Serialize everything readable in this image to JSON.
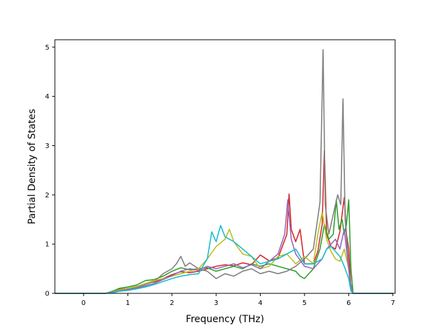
{
  "chart_data": {
    "type": "line",
    "xlabel": "Frequency (THz)",
    "ylabel": "Partial Density of States",
    "xlim": [
      -0.65,
      7.05
    ],
    "ylim": [
      0,
      5.15
    ],
    "xticks": [
      0,
      1,
      2,
      3,
      4,
      5,
      6,
      7
    ],
    "yticks": [
      0,
      1,
      2,
      3,
      4,
      5
    ],
    "grid": false,
    "legend": "none",
    "series": [
      {
        "color": "#d62728",
        "points": [
          [
            -0.65,
            0
          ],
          [
            0.5,
            0
          ],
          [
            0.7,
            0.05
          ],
          [
            0.8,
            0.08
          ],
          [
            1.0,
            0.1
          ],
          [
            1.2,
            0.14
          ],
          [
            1.4,
            0.2
          ],
          [
            1.6,
            0.23
          ],
          [
            1.8,
            0.3
          ],
          [
            2.0,
            0.38
          ],
          [
            2.2,
            0.44
          ],
          [
            2.4,
            0.42
          ],
          [
            2.6,
            0.45
          ],
          [
            2.8,
            0.5
          ],
          [
            3.0,
            0.55
          ],
          [
            3.2,
            0.58
          ],
          [
            3.4,
            0.56
          ],
          [
            3.6,
            0.62
          ],
          [
            3.8,
            0.58
          ],
          [
            4.0,
            0.78
          ],
          [
            4.2,
            0.66
          ],
          [
            4.4,
            0.72
          ],
          [
            4.6,
            1.2
          ],
          [
            4.65,
            2.02
          ],
          [
            4.7,
            1.3
          ],
          [
            4.8,
            1.05
          ],
          [
            4.9,
            1.3
          ],
          [
            5.0,
            0.6
          ],
          [
            5.2,
            0.6
          ],
          [
            5.3,
            0.85
          ],
          [
            5.4,
            1.4
          ],
          [
            5.45,
            2.9
          ],
          [
            5.5,
            1.2
          ],
          [
            5.6,
            0.95
          ],
          [
            5.7,
            0.9
          ],
          [
            5.8,
            1.25
          ],
          [
            5.9,
            1.95
          ],
          [
            5.95,
            1.2
          ],
          [
            6.0,
            0.9
          ],
          [
            6.05,
            0.1
          ],
          [
            6.1,
            0
          ],
          [
            7.0,
            0
          ]
        ]
      },
      {
        "color": "#2ca02c",
        "points": [
          [
            -0.65,
            0
          ],
          [
            0.5,
            0
          ],
          [
            0.7,
            0.06
          ],
          [
            0.8,
            0.1
          ],
          [
            1.0,
            0.13
          ],
          [
            1.2,
            0.17
          ],
          [
            1.4,
            0.26
          ],
          [
            1.6,
            0.28
          ],
          [
            1.8,
            0.35
          ],
          [
            2.0,
            0.45
          ],
          [
            2.2,
            0.52
          ],
          [
            2.4,
            0.48
          ],
          [
            2.6,
            0.5
          ],
          [
            2.8,
            0.52
          ],
          [
            3.0,
            0.45
          ],
          [
            3.2,
            0.5
          ],
          [
            3.4,
            0.55
          ],
          [
            3.6,
            0.5
          ],
          [
            3.8,
            0.6
          ],
          [
            4.0,
            0.55
          ],
          [
            4.2,
            0.6
          ],
          [
            4.4,
            0.55
          ],
          [
            4.6,
            0.5
          ],
          [
            4.8,
            0.45
          ],
          [
            4.9,
            0.35
          ],
          [
            5.0,
            0.3
          ],
          [
            5.2,
            0.5
          ],
          [
            5.35,
            0.9
          ],
          [
            5.45,
            1.4
          ],
          [
            5.55,
            1.1
          ],
          [
            5.65,
            1.2
          ],
          [
            5.72,
            1.9
          ],
          [
            5.78,
            1.3
          ],
          [
            5.85,
            1.5
          ],
          [
            5.9,
            1.2
          ],
          [
            5.95,
            1.4
          ],
          [
            6.0,
            1.9
          ],
          [
            6.05,
            0.5
          ],
          [
            6.1,
            0
          ],
          [
            7.0,
            0
          ]
        ]
      },
      {
        "color": "#7f7f7f",
        "points": [
          [
            -0.65,
            0
          ],
          [
            0.5,
            0
          ],
          [
            0.7,
            0.03
          ],
          [
            0.8,
            0.06
          ],
          [
            1.0,
            0.09
          ],
          [
            1.2,
            0.12
          ],
          [
            1.4,
            0.18
          ],
          [
            1.6,
            0.24
          ],
          [
            1.8,
            0.4
          ],
          [
            2.0,
            0.5
          ],
          [
            2.1,
            0.6
          ],
          [
            2.2,
            0.75
          ],
          [
            2.3,
            0.55
          ],
          [
            2.4,
            0.62
          ],
          [
            2.6,
            0.5
          ],
          [
            2.8,
            0.45
          ],
          [
            3.0,
            0.3
          ],
          [
            3.2,
            0.4
          ],
          [
            3.4,
            0.35
          ],
          [
            3.6,
            0.45
          ],
          [
            3.8,
            0.5
          ],
          [
            4.0,
            0.4
          ],
          [
            4.2,
            0.45
          ],
          [
            4.4,
            0.4
          ],
          [
            4.6,
            0.45
          ],
          [
            4.8,
            0.55
          ],
          [
            5.0,
            0.7
          ],
          [
            5.2,
            0.9
          ],
          [
            5.35,
            1.85
          ],
          [
            5.42,
            4.95
          ],
          [
            5.47,
            1.8
          ],
          [
            5.55,
            1.2
          ],
          [
            5.65,
            1.6
          ],
          [
            5.75,
            2.0
          ],
          [
            5.82,
            1.8
          ],
          [
            5.87,
            3.95
          ],
          [
            5.92,
            1.5
          ],
          [
            5.97,
            0.9
          ],
          [
            6.02,
            0.3
          ],
          [
            6.1,
            0
          ],
          [
            7.0,
            0
          ]
        ]
      },
      {
        "color": "#bcbd22",
        "points": [
          [
            -0.65,
            0
          ],
          [
            0.5,
            0
          ],
          [
            0.7,
            0.04
          ],
          [
            0.8,
            0.07
          ],
          [
            1.0,
            0.1
          ],
          [
            1.2,
            0.14
          ],
          [
            1.4,
            0.2
          ],
          [
            1.6,
            0.26
          ],
          [
            1.8,
            0.3
          ],
          [
            2.0,
            0.35
          ],
          [
            2.2,
            0.4
          ],
          [
            2.4,
            0.45
          ],
          [
            2.6,
            0.5
          ],
          [
            2.8,
            0.7
          ],
          [
            3.0,
            0.95
          ],
          [
            3.2,
            1.1
          ],
          [
            3.3,
            1.3
          ],
          [
            3.4,
            1.05
          ],
          [
            3.6,
            0.8
          ],
          [
            3.8,
            0.75
          ],
          [
            4.0,
            0.5
          ],
          [
            4.2,
            0.55
          ],
          [
            4.4,
            0.75
          ],
          [
            4.6,
            0.8
          ],
          [
            4.8,
            0.6
          ],
          [
            5.0,
            0.75
          ],
          [
            5.2,
            0.6
          ],
          [
            5.3,
            1.2
          ],
          [
            5.4,
            1.65
          ],
          [
            5.5,
            1.1
          ],
          [
            5.6,
            0.85
          ],
          [
            5.7,
            0.7
          ],
          [
            5.8,
            0.65
          ],
          [
            5.9,
            0.9
          ],
          [
            6.0,
            0.5
          ],
          [
            6.05,
            0.1
          ],
          [
            6.1,
            0
          ],
          [
            7.0,
            0
          ]
        ]
      },
      {
        "color": "#9467bd",
        "points": [
          [
            -0.65,
            0
          ],
          [
            0.5,
            0
          ],
          [
            0.7,
            0.03
          ],
          [
            0.8,
            0.05
          ],
          [
            1.0,
            0.08
          ],
          [
            1.2,
            0.11
          ],
          [
            1.4,
            0.15
          ],
          [
            1.6,
            0.2
          ],
          [
            1.8,
            0.28
          ],
          [
            2.0,
            0.36
          ],
          [
            2.2,
            0.45
          ],
          [
            2.4,
            0.5
          ],
          [
            2.6,
            0.47
          ],
          [
            2.8,
            0.55
          ],
          [
            3.0,
            0.5
          ],
          [
            3.2,
            0.55
          ],
          [
            3.4,
            0.6
          ],
          [
            3.6,
            0.52
          ],
          [
            3.8,
            0.58
          ],
          [
            4.0,
            0.5
          ],
          [
            4.2,
            0.65
          ],
          [
            4.4,
            0.8
          ],
          [
            4.55,
            1.2
          ],
          [
            4.62,
            1.9
          ],
          [
            4.7,
            1.1
          ],
          [
            4.8,
            0.8
          ],
          [
            5.0,
            0.55
          ],
          [
            5.2,
            0.5
          ],
          [
            5.4,
            0.7
          ],
          [
            5.5,
            0.9
          ],
          [
            5.6,
            1.0
          ],
          [
            5.7,
            1.1
          ],
          [
            5.8,
            0.9
          ],
          [
            5.9,
            1.3
          ],
          [
            5.95,
            0.9
          ],
          [
            6.0,
            0.5
          ],
          [
            6.05,
            0.1
          ],
          [
            6.1,
            0
          ],
          [
            7.0,
            0
          ]
        ]
      },
      {
        "color": "#17becf",
        "points": [
          [
            -0.65,
            0
          ],
          [
            0.5,
            0
          ],
          [
            0.7,
            0.02
          ],
          [
            0.8,
            0.04
          ],
          [
            1.0,
            0.06
          ],
          [
            1.2,
            0.09
          ],
          [
            1.4,
            0.13
          ],
          [
            1.6,
            0.18
          ],
          [
            1.8,
            0.24
          ],
          [
            2.0,
            0.3
          ],
          [
            2.2,
            0.35
          ],
          [
            2.4,
            0.38
          ],
          [
            2.6,
            0.4
          ],
          [
            2.8,
            0.7
          ],
          [
            2.9,
            1.25
          ],
          [
            3.0,
            1.05
          ],
          [
            3.1,
            1.38
          ],
          [
            3.2,
            1.15
          ],
          [
            3.4,
            1.05
          ],
          [
            3.6,
            0.9
          ],
          [
            3.8,
            0.75
          ],
          [
            4.0,
            0.6
          ],
          [
            4.2,
            0.65
          ],
          [
            4.4,
            0.7
          ],
          [
            4.6,
            0.8
          ],
          [
            4.8,
            0.9
          ],
          [
            5.0,
            0.6
          ],
          [
            5.2,
            0.6
          ],
          [
            5.4,
            0.7
          ],
          [
            5.5,
            0.9
          ],
          [
            5.6,
            0.95
          ],
          [
            5.7,
            0.85
          ],
          [
            5.8,
            0.75
          ],
          [
            5.9,
            0.55
          ],
          [
            6.0,
            0.3
          ],
          [
            6.05,
            0.05
          ],
          [
            6.1,
            0
          ],
          [
            7.0,
            0
          ]
        ]
      }
    ]
  }
}
